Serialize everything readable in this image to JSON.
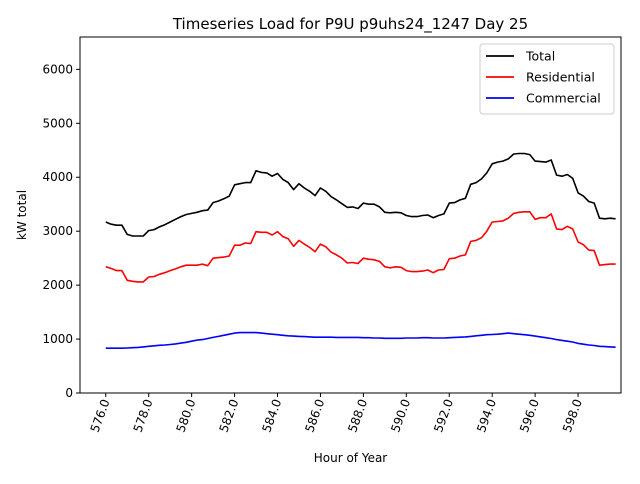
{
  "chart_data": {
    "type": "line",
    "title": "Timeseries Load for P9U p9uhs24_1247  Day 25",
    "xlabel": "Hour of Year",
    "ylabel": "kW total",
    "xlim": [
      574.8,
      600.0
    ],
    "ylim": [
      0,
      6600
    ],
    "x_ticks": [
      "576.0",
      "578.0",
      "580.0",
      "582.0",
      "584.0",
      "586.0",
      "588.0",
      "590.0",
      "592.0",
      "594.0",
      "596.0",
      "598.0"
    ],
    "y_ticks": [
      "0",
      "1000",
      "2000",
      "3000",
      "4000",
      "5000",
      "6000"
    ],
    "legend_position": "top-right",
    "x": [
      576.0,
      576.25,
      576.5,
      576.75,
      577.0,
      577.25,
      577.5,
      577.75,
      578.0,
      578.25,
      578.5,
      578.75,
      579.0,
      579.25,
      579.5,
      579.75,
      580.0,
      580.25,
      580.5,
      580.75,
      581.0,
      581.25,
      581.5,
      581.75,
      582.0,
      582.25,
      582.5,
      582.75,
      583.0,
      583.25,
      583.5,
      583.75,
      584.0,
      584.25,
      584.5,
      584.75,
      585.0,
      585.25,
      585.5,
      585.75,
      586.0,
      586.25,
      586.5,
      586.75,
      587.0,
      587.25,
      587.5,
      587.75,
      588.0,
      588.25,
      588.5,
      588.75,
      589.0,
      589.25,
      589.5,
      589.75,
      590.0,
      590.25,
      590.5,
      590.75,
      591.0,
      591.25,
      591.5,
      591.75,
      592.0,
      592.25,
      592.5,
      592.75,
      593.0,
      593.25,
      593.5,
      593.75,
      594.0,
      594.25,
      594.5,
      594.75,
      595.0,
      595.25,
      595.5,
      595.75,
      596.0,
      596.25,
      596.5,
      596.75,
      597.0,
      597.25,
      597.5,
      597.75,
      598.0,
      598.25,
      598.5,
      598.75,
      599.0,
      599.25,
      599.5,
      599.75
    ],
    "series": [
      {
        "name": "Total",
        "color": "#000000",
        "values": [
          3170,
          3130,
          3110,
          3110,
          2940,
          2910,
          2910,
          2910,
          3010,
          3030,
          3080,
          3120,
          3170,
          3220,
          3270,
          3310,
          3330,
          3350,
          3380,
          3390,
          3530,
          3560,
          3600,
          3650,
          3860,
          3880,
          3900,
          3900,
          4120,
          4090,
          4080,
          4020,
          4070,
          3960,
          3900,
          3770,
          3880,
          3800,
          3740,
          3660,
          3800,
          3740,
          3640,
          3580,
          3510,
          3440,
          3450,
          3420,
          3520,
          3500,
          3500,
          3450,
          3350,
          3340,
          3350,
          3340,
          3290,
          3270,
          3270,
          3290,
          3300,
          3250,
          3290,
          3320,
          3520,
          3530,
          3580,
          3610,
          3870,
          3900,
          3970,
          4080,
          4250,
          4280,
          4300,
          4340,
          4430,
          4440,
          4440,
          4420,
          4300,
          4290,
          4280,
          4320,
          4040,
          4020,
          4050,
          3980,
          3710,
          3650,
          3550,
          3520,
          3240,
          3230,
          3240,
          3230
        ]
      },
      {
        "name": "Residential",
        "color": "#ff0000",
        "values": [
          2340,
          2310,
          2270,
          2270,
          2090,
          2070,
          2060,
          2060,
          2150,
          2160,
          2200,
          2230,
          2270,
          2300,
          2340,
          2370,
          2370,
          2370,
          2390,
          2360,
          2500,
          2510,
          2520,
          2540,
          2740,
          2740,
          2780,
          2770,
          2990,
          2980,
          2980,
          2930,
          2990,
          2900,
          2860,
          2720,
          2830,
          2760,
          2700,
          2620,
          2760,
          2710,
          2610,
          2560,
          2500,
          2410,
          2420,
          2400,
          2500,
          2480,
          2470,
          2440,
          2340,
          2320,
          2340,
          2330,
          2270,
          2250,
          2250,
          2260,
          2280,
          2230,
          2280,
          2290,
          2490,
          2500,
          2540,
          2560,
          2810,
          2830,
          2880,
          3000,
          3170,
          3180,
          3190,
          3240,
          3330,
          3350,
          3360,
          3360,
          3220,
          3250,
          3250,
          3320,
          3040,
          3030,
          3090,
          3040,
          2800,
          2750,
          2650,
          2640,
          2370,
          2380,
          2390,
          2390
        ]
      },
      {
        "name": "Commercial",
        "color": "#0000ff",
        "values": [
          830,
          830,
          830,
          830,
          835,
          840,
          845,
          855,
          865,
          875,
          885,
          890,
          900,
          910,
          925,
          940,
          960,
          980,
          990,
          1010,
          1030,
          1050,
          1070,
          1090,
          1110,
          1120,
          1120,
          1120,
          1120,
          1110,
          1100,
          1090,
          1080,
          1070,
          1060,
          1055,
          1050,
          1045,
          1040,
          1035,
          1035,
          1035,
          1035,
          1030,
          1030,
          1030,
          1030,
          1030,
          1025,
          1025,
          1020,
          1020,
          1015,
          1015,
          1015,
          1015,
          1020,
          1020,
          1020,
          1025,
          1025,
          1020,
          1020,
          1020,
          1025,
          1030,
          1035,
          1040,
          1050,
          1060,
          1070,
          1080,
          1085,
          1090,
          1100,
          1110,
          1100,
          1090,
          1080,
          1070,
          1055,
          1040,
          1025,
          1010,
          990,
          975,
          960,
          945,
          920,
          905,
          890,
          880,
          865,
          860,
          855,
          850
        ]
      }
    ]
  }
}
